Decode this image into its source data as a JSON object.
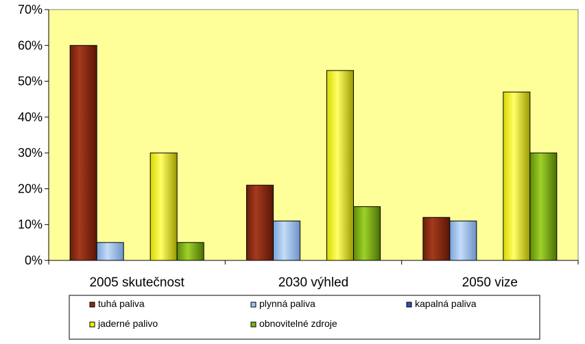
{
  "chart_data": {
    "type": "bar",
    "title": "",
    "xlabel": "",
    "ylabel": "",
    "categories": [
      "2005 skutečnost",
      "2030 výhled",
      "2050 vize"
    ],
    "series": [
      {
        "name": "tuhá paliva",
        "values": [
          60,
          21,
          12
        ],
        "color": "#8b2a12"
      },
      {
        "name": "plynná paliva",
        "values": [
          5,
          11,
          11
        ],
        "color": "#9ec1ee"
      },
      {
        "name": "kapalná paliva",
        "values": [
          0,
          0,
          0
        ],
        "color": "#2f4fb5"
      },
      {
        "name": "jaderné palivo",
        "values": [
          30,
          53,
          47
        ],
        "color": "#f2f200"
      },
      {
        "name": "obnovitelné zdroje",
        "values": [
          5,
          15,
          30
        ],
        "color": "#7fb314"
      }
    ],
    "ylim": [
      0,
      70
    ],
    "yticks": [
      "0%",
      "10%",
      "20%",
      "30%",
      "40%",
      "50%",
      "60%",
      "70%"
    ],
    "plot_background": "#ffff99",
    "grid": false,
    "legend_position": "bottom"
  }
}
